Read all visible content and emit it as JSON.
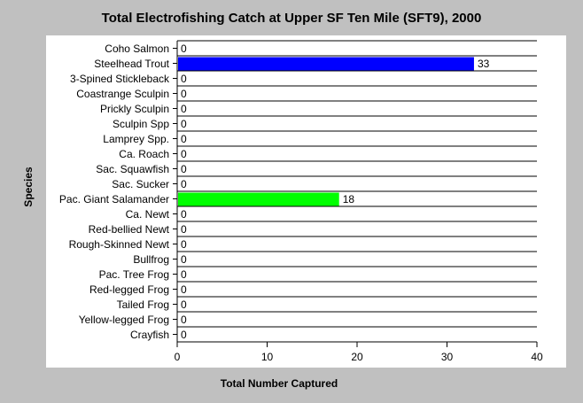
{
  "chart_data": {
    "type": "bar",
    "orientation": "horizontal",
    "title": "Total Electrofishing Catch at Upper SF Ten Mile (SFT9), 2000",
    "xlabel": "Total Number Captured",
    "ylabel": "Species",
    "xlim": [
      0,
      40
    ],
    "xticks": [
      "0",
      "10",
      "20",
      "30",
      "40"
    ],
    "grid": true,
    "categories": [
      "Coho Salmon",
      "Steelhead Trout",
      "3-Spined Stickleback",
      "Coastrange Sculpin",
      "Prickly Sculpin",
      "Sculpin Spp",
      "Lamprey Spp.",
      "Ca. Roach",
      "Sac. Squawfish",
      "Sac. Sucker",
      "Pac. Giant Salamander",
      "Ca. Newt",
      "Red-bellied Newt",
      "Rough-Skinned Newt",
      "Bullfrog",
      "Pac. Tree Frog",
      "Red-legged Frog",
      "Tailed Frog",
      "Yellow-legged Frog",
      "Crayfish"
    ],
    "values": [
      0,
      33,
      0,
      0,
      0,
      0,
      0,
      0,
      0,
      0,
      18,
      0,
      0,
      0,
      0,
      0,
      0,
      0,
      0,
      0
    ],
    "bar_colors": {
      "Steelhead Trout": "#0000ff",
      "Pac. Giant Salamander": "#00ff00"
    }
  }
}
